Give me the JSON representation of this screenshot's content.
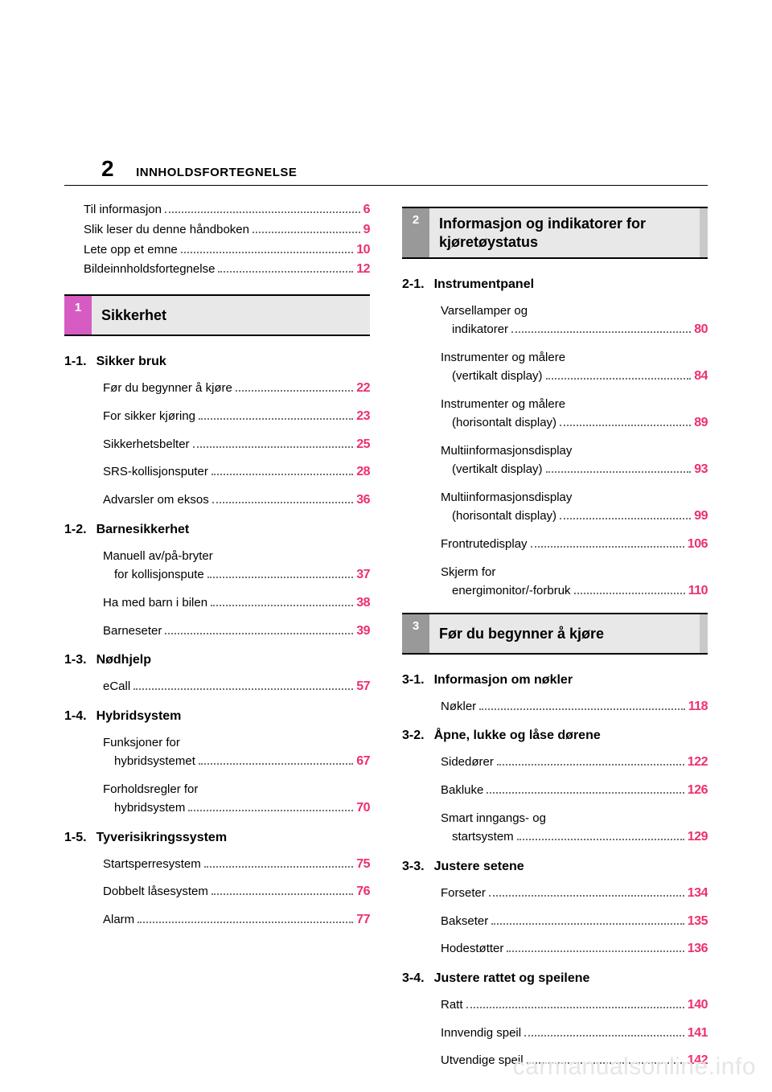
{
  "page_number": "2",
  "header_title": "INNHOLDSFORTEGNELSE",
  "watermark": "carmanualsonline.info",
  "colors": {
    "page_link": "#ee2f6b",
    "section_accent": "#d65cc3",
    "section_gray": "#999999",
    "section_bg": "#e8e8e8",
    "right_nub": "#c9c9c9",
    "rule": "#000000",
    "text": "#000000",
    "background": "#ffffff",
    "watermark": "#e6e6e6"
  },
  "typography": {
    "base_font": "Arial, Helvetica, sans-serif",
    "body_size_pt": 11,
    "page_number_size_pt": 21,
    "header_title_size_pt": 11,
    "section_title_size_pt": 14,
    "sub_head_size_pt": 12,
    "toc_page_weight": 900
  },
  "left": {
    "plain": [
      {
        "label": "Til informasjon",
        "page": "6"
      },
      {
        "label": "Slik leser du denne håndboken",
        "page": "9"
      },
      {
        "label": "Lete opp et emne",
        "page": "10"
      },
      {
        "label": "Bildeinnholdsfortegnelse",
        "page": "12"
      }
    ],
    "section": {
      "num": "1",
      "title": "Sikkerhet",
      "accent": true
    },
    "subs": [
      {
        "num": "1-1.",
        "title": "Sikker bruk",
        "items": [
          {
            "label": "Før du begynner å kjøre",
            "page": "22"
          },
          {
            "label": "For sikker kjøring",
            "page": "23"
          },
          {
            "label": "Sikkerhetsbelter",
            "page": "25"
          },
          {
            "label": "SRS-kollisjonsputer",
            "page": "28"
          },
          {
            "label": "Advarsler om eksos",
            "page": "36"
          }
        ]
      },
      {
        "num": "1-2.",
        "title": "Barnesikkerhet",
        "items": [
          {
            "label1": "Manuell av/på-bryter",
            "label2": "for kollisjonspute",
            "page": "37",
            "multi": true
          },
          {
            "label": "Ha med barn i bilen",
            "page": "38"
          },
          {
            "label": "Barneseter",
            "page": "39"
          }
        ]
      },
      {
        "num": "1-3.",
        "title": "Nødhjelp",
        "items": [
          {
            "label": "eCall",
            "page": "57"
          }
        ]
      },
      {
        "num": "1-4.",
        "title": "Hybridsystem",
        "items": [
          {
            "label1": "Funksjoner for",
            "label2": "hybridsystemet",
            "page": "67",
            "multi": true
          },
          {
            "label1": "Forholdsregler for",
            "label2": "hybridsystem",
            "page": "70",
            "multi": true
          }
        ]
      },
      {
        "num": "1-5.",
        "title": "Tyverisikringssystem",
        "items": [
          {
            "label": "Startsperresystem",
            "page": "75"
          },
          {
            "label": "Dobbelt låsesystem",
            "page": "76"
          },
          {
            "label": "Alarm",
            "page": "77"
          }
        ]
      }
    ]
  },
  "right": {
    "section2": {
      "num": "2",
      "title": "Informasjon og indikatorer for kjøretøystatus",
      "accent": false
    },
    "subs2": [
      {
        "num": "2-1.",
        "title": "Instrumentpanel",
        "items": [
          {
            "label1": "Varsellamper og",
            "label2": "indikatorer",
            "page": "80",
            "multi": true
          },
          {
            "label1": "Instrumenter og målere",
            "label2": "(vertikalt display)",
            "page": "84",
            "multi": true
          },
          {
            "label1": "Instrumenter og målere",
            "label2": "(horisontalt display)",
            "page": "89",
            "multi": true
          },
          {
            "label1": "Multiinformasjonsdisplay",
            "label2": "(vertikalt display)",
            "page": "93",
            "multi": true
          },
          {
            "label1": "Multiinformasjonsdisplay",
            "label2": "(horisontalt display)",
            "page": "99",
            "multi": true
          },
          {
            "label": "Frontrutedisplay",
            "page": "106"
          },
          {
            "label1": "Skjerm for",
            "label2": "energimonitor/-forbruk",
            "page": "110",
            "multi": true
          }
        ]
      }
    ],
    "section3": {
      "num": "3",
      "title": "Før du begynner å kjøre",
      "accent": false
    },
    "subs3": [
      {
        "num": "3-1.",
        "title": "Informasjon om nøkler",
        "items": [
          {
            "label": "Nøkler",
            "page": "118"
          }
        ]
      },
      {
        "num": "3-2.",
        "title": "Åpne, lukke og låse dørene",
        "items": [
          {
            "label": "Sidedører",
            "page": "122"
          },
          {
            "label": "Bakluke",
            "page": "126"
          },
          {
            "label1": "Smart inngangs- og",
            "label2": "startsystem",
            "page": "129",
            "multi": true
          }
        ]
      },
      {
        "num": "3-3.",
        "title": "Justere setene",
        "items": [
          {
            "label": "Forseter",
            "page": "134"
          },
          {
            "label": "Bakseter",
            "page": "135"
          },
          {
            "label": "Hodestøtter",
            "page": "136"
          }
        ]
      },
      {
        "num": "3-4.",
        "title": "Justere rattet og speilene",
        "items": [
          {
            "label": "Ratt",
            "page": "140"
          },
          {
            "label": "Innvendig speil",
            "page": "141"
          },
          {
            "label": "Utvendige speil",
            "page": "142"
          }
        ]
      }
    ]
  }
}
